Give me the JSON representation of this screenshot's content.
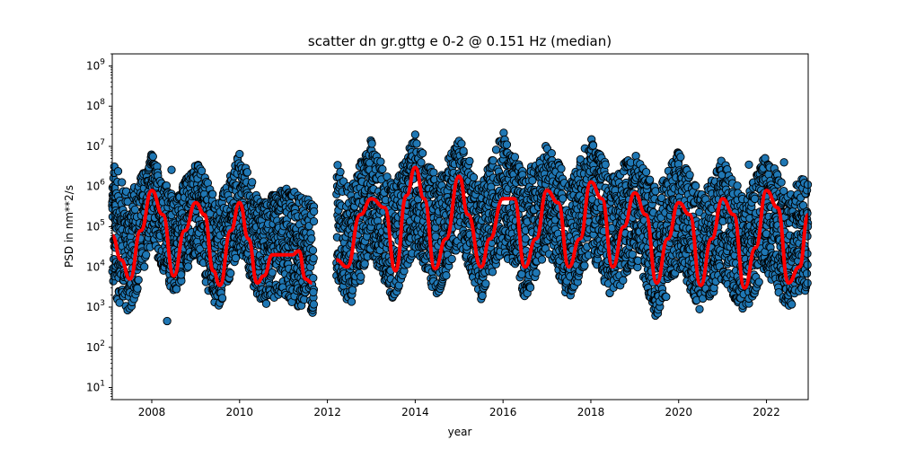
{
  "chart_data": {
    "type": "scatter",
    "title": "scatter dn gr.gttg e 0-2 @ 0.151 Hz (median)",
    "xlabel": "year",
    "ylabel": "PSD in nm**2/s",
    "xlim": [
      2007.1,
      2022.95
    ],
    "ylim": [
      5,
      2000000000
    ],
    "yscale": "log",
    "x_ticks": [
      2008,
      2010,
      2012,
      2014,
      2016,
      2018,
      2020,
      2022
    ],
    "y_ticks": [
      {
        "value": 10,
        "base": "10",
        "exp": "1"
      },
      {
        "value": 100,
        "base": "10",
        "exp": "2"
      },
      {
        "value": 1000,
        "base": "10",
        "exp": "3"
      },
      {
        "value": 10000,
        "base": "10",
        "exp": "4"
      },
      {
        "value": 100000,
        "base": "10",
        "exp": "5"
      },
      {
        "value": 1000000,
        "base": "10",
        "exp": "6"
      },
      {
        "value": 10000000,
        "base": "10",
        "exp": "7"
      },
      {
        "value": 100000000,
        "base": "10",
        "exp": "8"
      },
      {
        "value": 1000000000,
        "base": "10",
        "exp": "9"
      }
    ],
    "grid": false,
    "series": [
      {
        "kind": "scatter",
        "color": "#1f77b4",
        "edge_color": "#000000",
        "envelope": {
          "x": [
            2007.1,
            2007.5,
            2008.0,
            2008.5,
            2009.0,
            2009.5,
            2010.0,
            2010.5,
            2011.0,
            2011.3,
            2011.65,
            2012.2,
            2012.5,
            2013.0,
            2013.5,
            2014.0,
            2014.5,
            2015.0,
            2015.5,
            2016.0,
            2016.5,
            2017.0,
            2017.5,
            2018.0,
            2018.5,
            2019.0,
            2019.5,
            2020.0,
            2020.5,
            2021.0,
            2021.5,
            2022.0,
            2022.5,
            2022.95
          ],
          "high": [
            5000000,
            600000,
            7000000,
            500000,
            5000000,
            400000,
            7000000,
            400000,
            1000000,
            700000,
            500000,
            5000000,
            900000,
            15000000,
            1000000,
            20000000,
            1500000,
            18000000,
            1000000,
            25000000,
            2000000,
            12000000,
            1500000,
            18000000,
            2000000,
            7000000,
            800000,
            8000000,
            600000,
            5000000,
            500000,
            7000000,
            600000,
            3000000
          ],
          "low": [
            2000,
            600,
            40000,
            2000,
            20000,
            600,
            30000,
            1000,
            2000,
            1000,
            700,
            3000,
            1000,
            20000,
            1500,
            30000,
            1500,
            40000,
            1500,
            30000,
            1500,
            25000,
            1500,
            20000,
            1500,
            15000,
            500,
            10000,
            800,
            5000,
            700,
            8000,
            800,
            3000
          ]
        },
        "outliers": [
          {
            "x": 2008.35,
            "y": 450
          },
          {
            "x": 2008.45,
            "y": 2600000
          },
          {
            "x": 2021.6,
            "y": 3500000
          },
          {
            "x": 2022.4,
            "y": 4000000
          }
        ]
      },
      {
        "kind": "line",
        "color": "#ff0000",
        "x": [
          2007.1,
          2007.3,
          2007.5,
          2007.75,
          2008.0,
          2008.25,
          2008.5,
          2008.75,
          2009.0,
          2009.2,
          2009.4,
          2009.55,
          2009.8,
          2010.0,
          2010.2,
          2010.4,
          2010.55,
          2010.75,
          2011.0,
          2011.2,
          2011.35,
          2011.5,
          2011.65,
          2012.2,
          2012.45,
          2012.75,
          2013.0,
          2013.3,
          2013.55,
          2013.8,
          2014.0,
          2014.2,
          2014.45,
          2014.7,
          2015.0,
          2015.2,
          2015.5,
          2015.7,
          2016.0,
          2016.25,
          2016.5,
          2016.75,
          2017.0,
          2017.25,
          2017.5,
          2017.75,
          2018.0,
          2018.25,
          2018.5,
          2018.75,
          2019.0,
          2019.25,
          2019.5,
          2019.75,
          2020.0,
          2020.25,
          2020.5,
          2020.75,
          2021.0,
          2021.25,
          2021.5,
          2021.75,
          2022.0,
          2022.25,
          2022.5,
          2022.75,
          2022.95
        ],
        "y": [
          60000,
          15000,
          5000,
          80000,
          800000,
          200000,
          6000,
          80000,
          400000,
          200000,
          8000,
          3500,
          80000,
          400000,
          50000,
          4000,
          6000,
          20000,
          20000,
          20000,
          25000,
          5000,
          4000,
          15000,
          10000,
          200000,
          500000,
          300000,
          8000,
          600000,
          3000000,
          500000,
          9000,
          50000,
          1800000,
          200000,
          10000,
          50000,
          500000,
          500000,
          10000,
          50000,
          800000,
          400000,
          10000,
          50000,
          1300000,
          500000,
          10000,
          100000,
          700000,
          200000,
          4000,
          50000,
          400000,
          200000,
          3500,
          50000,
          500000,
          200000,
          3000,
          30000,
          800000,
          300000,
          4000,
          10000,
          200000
        ]
      }
    ]
  }
}
